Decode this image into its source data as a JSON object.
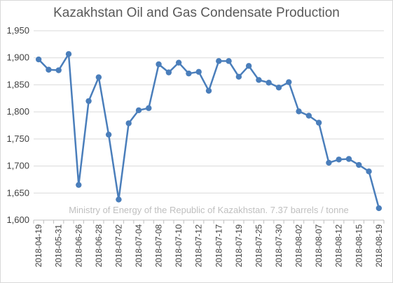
{
  "chart_data": {
    "type": "line",
    "title": "Kazakhstan Oil and Gas Condensate Production",
    "xlabel": "",
    "ylabel": "",
    "ylim": [
      1600,
      1950
    ],
    "yticks": [
      "1,600",
      "1,650",
      "1,700",
      "1,750",
      "1,800",
      "1,850",
      "1,900",
      "1,950"
    ],
    "grid": true,
    "legend": "none",
    "annotation": "Ministry of Energy of the Republic of Kazakhstan. 7.37 barrels / tonne",
    "color": "#4a7ebb",
    "series": [
      {
        "values": [
          1897,
          1878,
          1877,
          1907,
          1665,
          1820,
          1864,
          1758,
          1638,
          1779,
          1803,
          1807,
          1888,
          1873,
          1891,
          1871,
          1874,
          1839,
          1894,
          1894,
          1865,
          1885,
          1859,
          1854,
          1845,
          1855,
          1801,
          1793,
          1780,
          1706,
          1712,
          1713,
          1702,
          1690,
          1622
        ]
      }
    ],
    "x_tick_labels": [
      "2018-04-19",
      "2018-05-31",
      "2018-06-26",
      "2018-06-28",
      "2018-07-02",
      "2018-07-04",
      "2018-07-08",
      "2018-07-10",
      "2018-07-12",
      "2018-07-17",
      "2018-07-19",
      "2018-07-25",
      "2018-07-30",
      "2018-08-02",
      "2018-08-07",
      "2018-08-12",
      "2018-08-15",
      "2018-08-19"
    ]
  }
}
